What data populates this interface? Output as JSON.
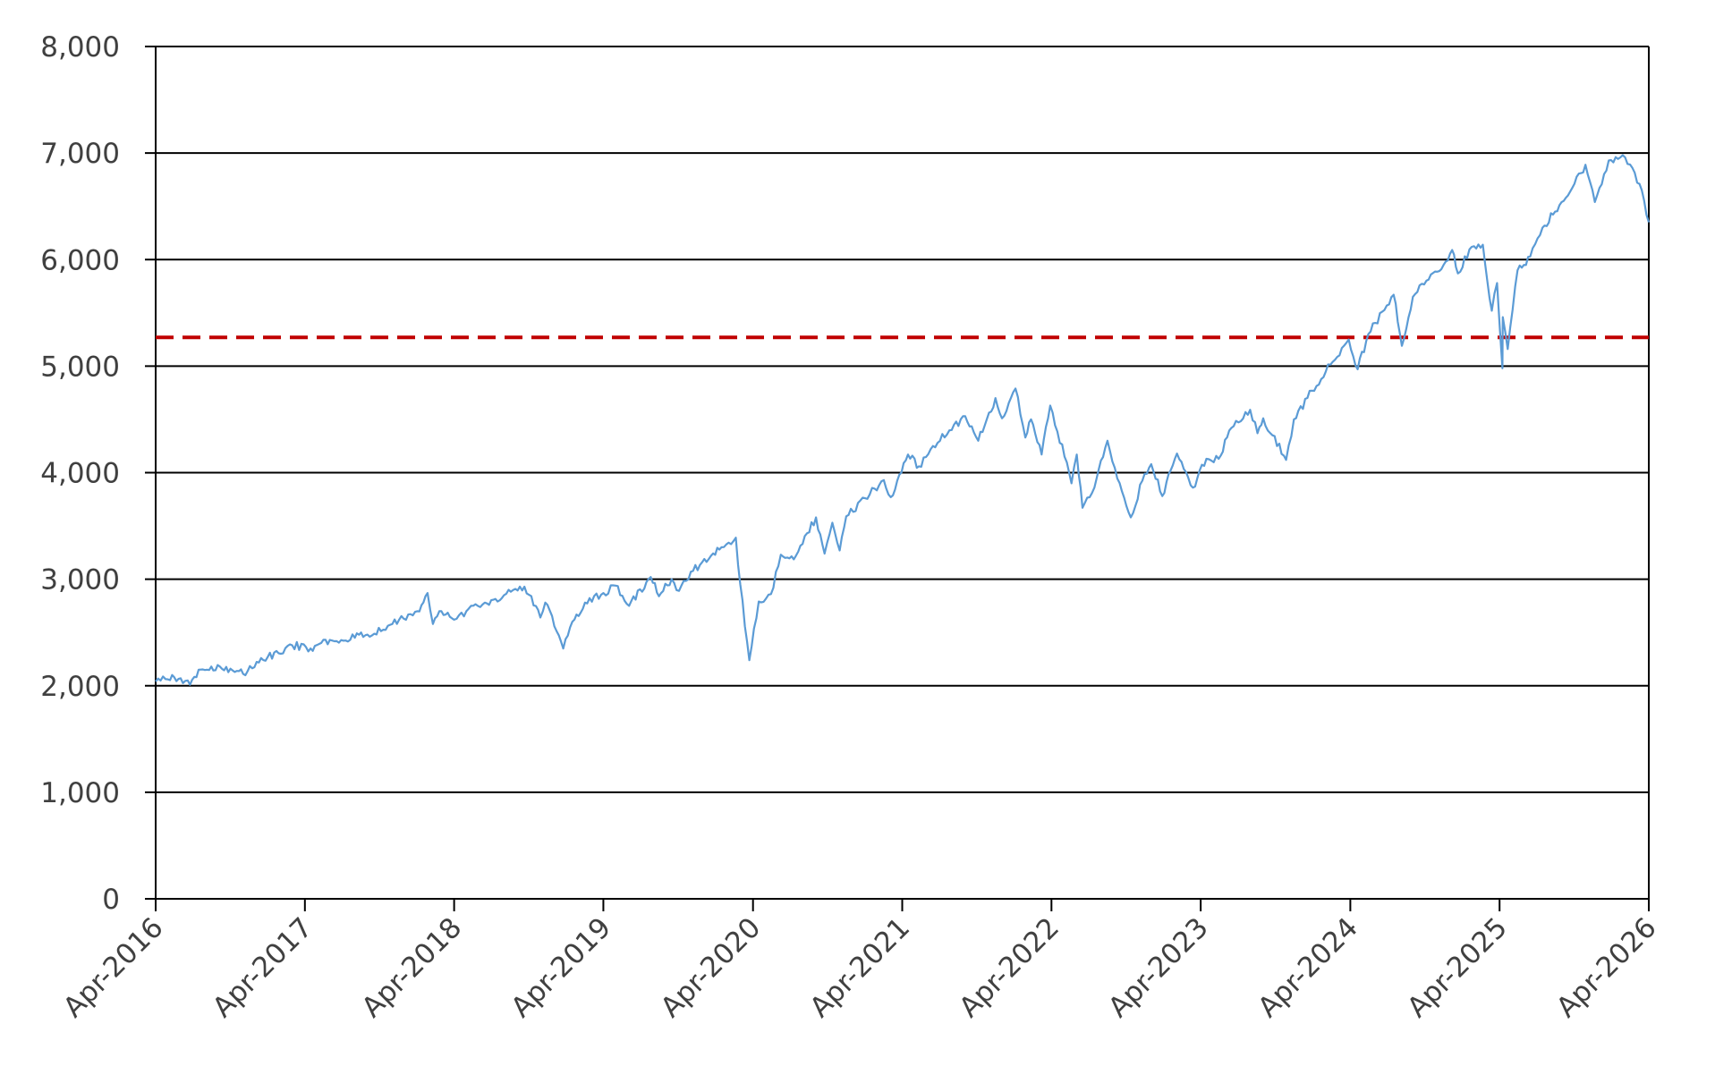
{
  "chart_data": {
    "type": "line",
    "title": "",
    "xlabel": "",
    "ylabel": "",
    "ylim": [
      0,
      8000
    ],
    "xlim": [
      "2016-04-01",
      "2026-04-01"
    ],
    "grid": "horizontal",
    "y_ticks": [
      0,
      1000,
      2000,
      3000,
      4000,
      5000,
      6000,
      7000,
      8000
    ],
    "y_tick_labels": [
      "0",
      "1,000",
      "2,000",
      "3,000",
      "4,000",
      "5,000",
      "6,000",
      "7,000",
      "8,000"
    ],
    "x_tick_labels": [
      "Apr-2016",
      "Apr-2017",
      "Apr-2018",
      "Apr-2019",
      "Apr-2020",
      "Apr-2021",
      "Apr-2022",
      "Apr-2023",
      "Apr-2024",
      "Apr-2025",
      "Apr-2026"
    ],
    "x_ticks": [
      "2016-04-01",
      "2017-04-01",
      "2018-04-01",
      "2019-04-01",
      "2020-04-01",
      "2021-04-01",
      "2022-04-01",
      "2023-04-01",
      "2024-04-01",
      "2025-04-01",
      "2026-04-01"
    ],
    "reference_line": {
      "value": 5270,
      "color": "#c00000",
      "style": "dashed"
    },
    "series": [
      {
        "color": "#5b9bd5",
        "points": [
          [
            "2016-04-01",
            2040
          ],
          [
            "2016-05-01",
            2060
          ],
          [
            "2016-06-01",
            2070
          ],
          [
            "2016-06-24",
            2010
          ],
          [
            "2016-07-15",
            2150
          ],
          [
            "2016-08-15",
            2180
          ],
          [
            "2016-10-01",
            2160
          ],
          [
            "2016-11-01",
            2110
          ],
          [
            "2016-12-15",
            2260
          ],
          [
            "2017-02-01",
            2300
          ],
          [
            "2017-03-01",
            2380
          ],
          [
            "2017-04-15",
            2350
          ],
          [
            "2017-06-01",
            2430
          ],
          [
            "2017-08-01",
            2450
          ],
          [
            "2017-09-01",
            2480
          ],
          [
            "2017-11-01",
            2580
          ],
          [
            "2018-01-01",
            2700
          ],
          [
            "2018-01-26",
            2870
          ],
          [
            "2018-02-08",
            2580
          ],
          [
            "2018-03-01",
            2700
          ],
          [
            "2018-04-01",
            2620
          ],
          [
            "2018-05-01",
            2700
          ],
          [
            "2018-06-15",
            2780
          ],
          [
            "2018-08-01",
            2850
          ],
          [
            "2018-09-20",
            2930
          ],
          [
            "2018-10-29",
            2640
          ],
          [
            "2018-11-10",
            2780
          ],
          [
            "2018-12-24",
            2350
          ],
          [
            "2019-01-15",
            2600
          ],
          [
            "2019-02-15",
            2780
          ],
          [
            "2019-04-01",
            2870
          ],
          [
            "2019-05-01",
            2940
          ],
          [
            "2019-06-03",
            2750
          ],
          [
            "2019-07-26",
            3020
          ],
          [
            "2019-08-15",
            2840
          ],
          [
            "2019-09-15",
            3000
          ],
          [
            "2019-10-03",
            2890
          ],
          [
            "2019-11-01",
            3070
          ],
          [
            "2019-12-15",
            3190
          ],
          [
            "2020-01-15",
            3300
          ],
          [
            "2020-02-19",
            3390
          ],
          [
            "2020-03-01",
            2950
          ],
          [
            "2020-03-23",
            2240
          ],
          [
            "2020-04-15",
            2790
          ],
          [
            "2020-05-15",
            2860
          ],
          [
            "2020-06-08",
            3230
          ],
          [
            "2020-07-15",
            3220
          ],
          [
            "2020-09-02",
            3580
          ],
          [
            "2020-09-23",
            3240
          ],
          [
            "2020-10-12",
            3530
          ],
          [
            "2020-10-30",
            3270
          ],
          [
            "2020-11-15",
            3590
          ],
          [
            "2020-12-31",
            3760
          ],
          [
            "2021-02-15",
            3930
          ],
          [
            "2021-03-04",
            3770
          ],
          [
            "2021-04-15",
            4170
          ],
          [
            "2021-05-12",
            4060
          ],
          [
            "2021-06-15",
            4250
          ],
          [
            "2021-07-31",
            4400
          ],
          [
            "2021-09-02",
            4530
          ],
          [
            "2021-10-04",
            4300
          ],
          [
            "2021-11-15",
            4700
          ],
          [
            "2021-12-01",
            4510
          ],
          [
            "2022-01-03",
            4790
          ],
          [
            "2022-01-27",
            4330
          ],
          [
            "2022-02-10",
            4500
          ],
          [
            "2022-03-08",
            4170
          ],
          [
            "2022-03-29",
            4630
          ],
          [
            "2022-05-03",
            4150
          ],
          [
            "2022-05-20",
            3900
          ],
          [
            "2022-06-02",
            4170
          ],
          [
            "2022-06-16",
            3670
          ],
          [
            "2022-07-15",
            3860
          ],
          [
            "2022-08-16",
            4300
          ],
          [
            "2022-09-15",
            3900
          ],
          [
            "2022-10-12",
            3580
          ],
          [
            "2022-11-15",
            3990
          ],
          [
            "2022-12-01",
            4080
          ],
          [
            "2022-12-28",
            3780
          ],
          [
            "2023-02-02",
            4180
          ],
          [
            "2023-03-13",
            3860
          ],
          [
            "2023-04-15",
            4130
          ],
          [
            "2023-05-15",
            4130
          ],
          [
            "2023-06-15",
            4420
          ],
          [
            "2023-07-31",
            4590
          ],
          [
            "2023-08-18",
            4370
          ],
          [
            "2023-09-01",
            4510
          ],
          [
            "2023-10-27",
            4120
          ],
          [
            "2023-11-15",
            4500
          ],
          [
            "2023-12-29",
            4770
          ],
          [
            "2024-02-01",
            4950
          ],
          [
            "2024-03-28",
            5250
          ],
          [
            "2024-04-19",
            4970
          ],
          [
            "2024-05-15",
            5300
          ],
          [
            "2024-07-16",
            5670
          ],
          [
            "2024-08-05",
            5190
          ],
          [
            "2024-09-01",
            5650
          ],
          [
            "2024-10-15",
            5860
          ],
          [
            "2024-11-15",
            5950
          ],
          [
            "2024-12-06",
            6090
          ],
          [
            "2024-12-20",
            5870
          ],
          [
            "2025-01-23",
            6120
          ],
          [
            "2025-02-19",
            6140
          ],
          [
            "2025-03-13",
            5520
          ],
          [
            "2025-03-26",
            5780
          ],
          [
            "2025-04-08",
            4980
          ],
          [
            "2025-04-09",
            5460
          ],
          [
            "2025-04-21",
            5160
          ],
          [
            "2025-05-15",
            5900
          ],
          [
            "2025-06-15",
            6030
          ],
          [
            "2025-07-15",
            6300
          ],
          [
            "2025-08-15",
            6450
          ],
          [
            "2025-09-15",
            6600
          ],
          [
            "2025-10-28",
            6890
          ],
          [
            "2025-11-20",
            6540
          ],
          [
            "2025-12-24",
            6930
          ],
          [
            "2026-01-27",
            6980
          ],
          [
            "2026-02-20",
            6860
          ],
          [
            "2026-03-15",
            6650
          ],
          [
            "2026-04-01",
            6350
          ]
        ]
      }
    ]
  }
}
